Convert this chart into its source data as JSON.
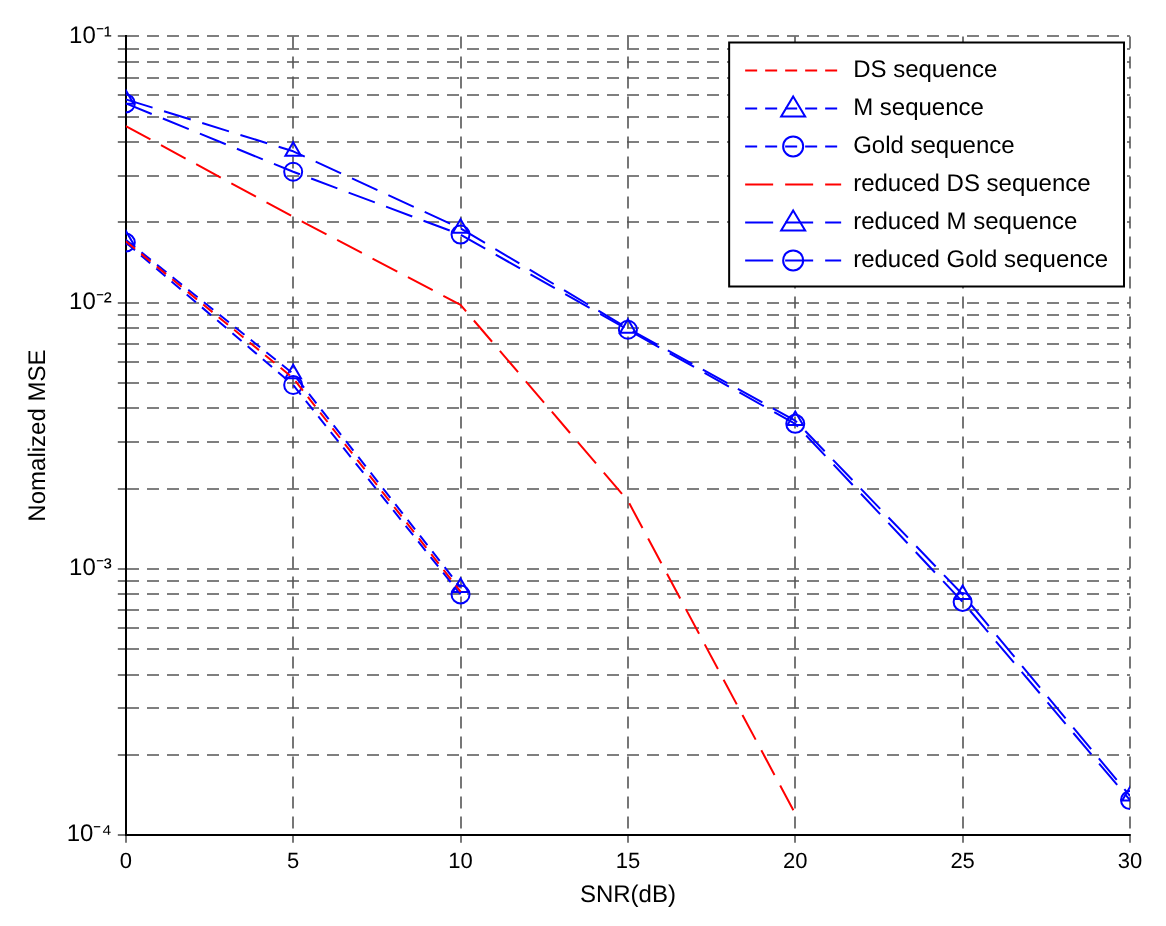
{
  "chart_data": {
    "type": "line",
    "xlabel": "SNR(dB)",
    "ylabel": "Nomalized MSE",
    "log": "y",
    "grid": true,
    "legend": "top right",
    "xlim": [
      0,
      30
    ],
    "xticks": [
      0,
      5,
      10,
      15,
      20,
      25,
      30
    ],
    "ylim": [
      0.0001,
      0.1
    ],
    "yticks": [
      {
        "value": 0.0001,
        "label": "10⁻⁴"
      },
      {
        "value": 0.0002,
        "label": null
      },
      {
        "value": 0.0003,
        "label": null
      },
      {
        "value": 0.0004,
        "label": null
      },
      {
        "value": 0.0005,
        "label": null
      },
      {
        "value": 0.0006,
        "label": null
      },
      {
        "value": 0.0007,
        "label": null
      },
      {
        "value": 0.0008,
        "label": null
      },
      {
        "value": 0.0009,
        "label": null
      },
      {
        "value": 0.001,
        "label": "10⁻³"
      },
      {
        "value": 0.002,
        "label": null
      },
      {
        "value": 0.003,
        "label": null
      },
      {
        "value": 0.004,
        "label": null
      },
      {
        "value": 0.005,
        "label": null
      },
      {
        "value": 0.006,
        "label": null
      },
      {
        "value": 0.007,
        "label": null
      },
      {
        "value": 0.008,
        "label": null
      },
      {
        "value": 0.009,
        "label": null
      },
      {
        "value": 0.01,
        "label": "10⁻²"
      },
      {
        "value": 0.02,
        "label": null
      },
      {
        "value": 0.03,
        "label": null
      },
      {
        "value": 0.04,
        "label": null
      },
      {
        "value": 0.05,
        "label": null
      },
      {
        "value": 0.06,
        "label": null
      },
      {
        "value": 0.07,
        "label": null
      },
      {
        "value": 0.08,
        "label": null
      },
      {
        "value": 0.09,
        "label": null
      },
      {
        "value": 0.1,
        "label": "10⁻¹"
      }
    ],
    "series": [
      {
        "name": "DS sequence",
        "color": "#ff0000",
        "marker": "none",
        "line_style": "dashed",
        "x": [
          0,
          5,
          10
        ],
        "values": [
          0.017,
          0.0052,
          0.00082
        ]
      },
      {
        "name": "M sequence",
        "color": "#0000ff",
        "marker": "triangle",
        "line_style": "dashed",
        "x": [
          0,
          5,
          10
        ],
        "values": [
          0.0172,
          0.0054,
          0.00085
        ]
      },
      {
        "name": "Gold sequence",
        "color": "#0000ff",
        "marker": "circle",
        "line_style": "dashed",
        "x": [
          0,
          5,
          10
        ],
        "values": [
          0.0168,
          0.0049,
          0.0008
        ]
      },
      {
        "name": "reduced DS sequence",
        "color": "#ff0000",
        "marker": "none",
        "line_style": "dashed",
        "x": [
          0,
          5,
          10,
          15,
          20
        ],
        "values": [
          0.046,
          0.021,
          0.0098,
          0.0018,
          0.00012
        ]
      },
      {
        "name": "reduced M sequence",
        "color": "#0000ff",
        "marker": "triangle",
        "line_style": "dashed",
        "x": [
          0,
          5,
          10,
          15,
          20,
          25,
          30
        ],
        "values": [
          0.058,
          0.037,
          0.019,
          0.008,
          0.0036,
          0.0008,
          0.00014
        ]
      },
      {
        "name": "reduced Gold sequence",
        "color": "#0000ff",
        "marker": "circle",
        "line_style": "dashed",
        "x": [
          0,
          5,
          10,
          15,
          20,
          25,
          30
        ],
        "values": [
          0.056,
          0.031,
          0.018,
          0.0079,
          0.0035,
          0.00075,
          0.000135
        ]
      }
    ]
  }
}
